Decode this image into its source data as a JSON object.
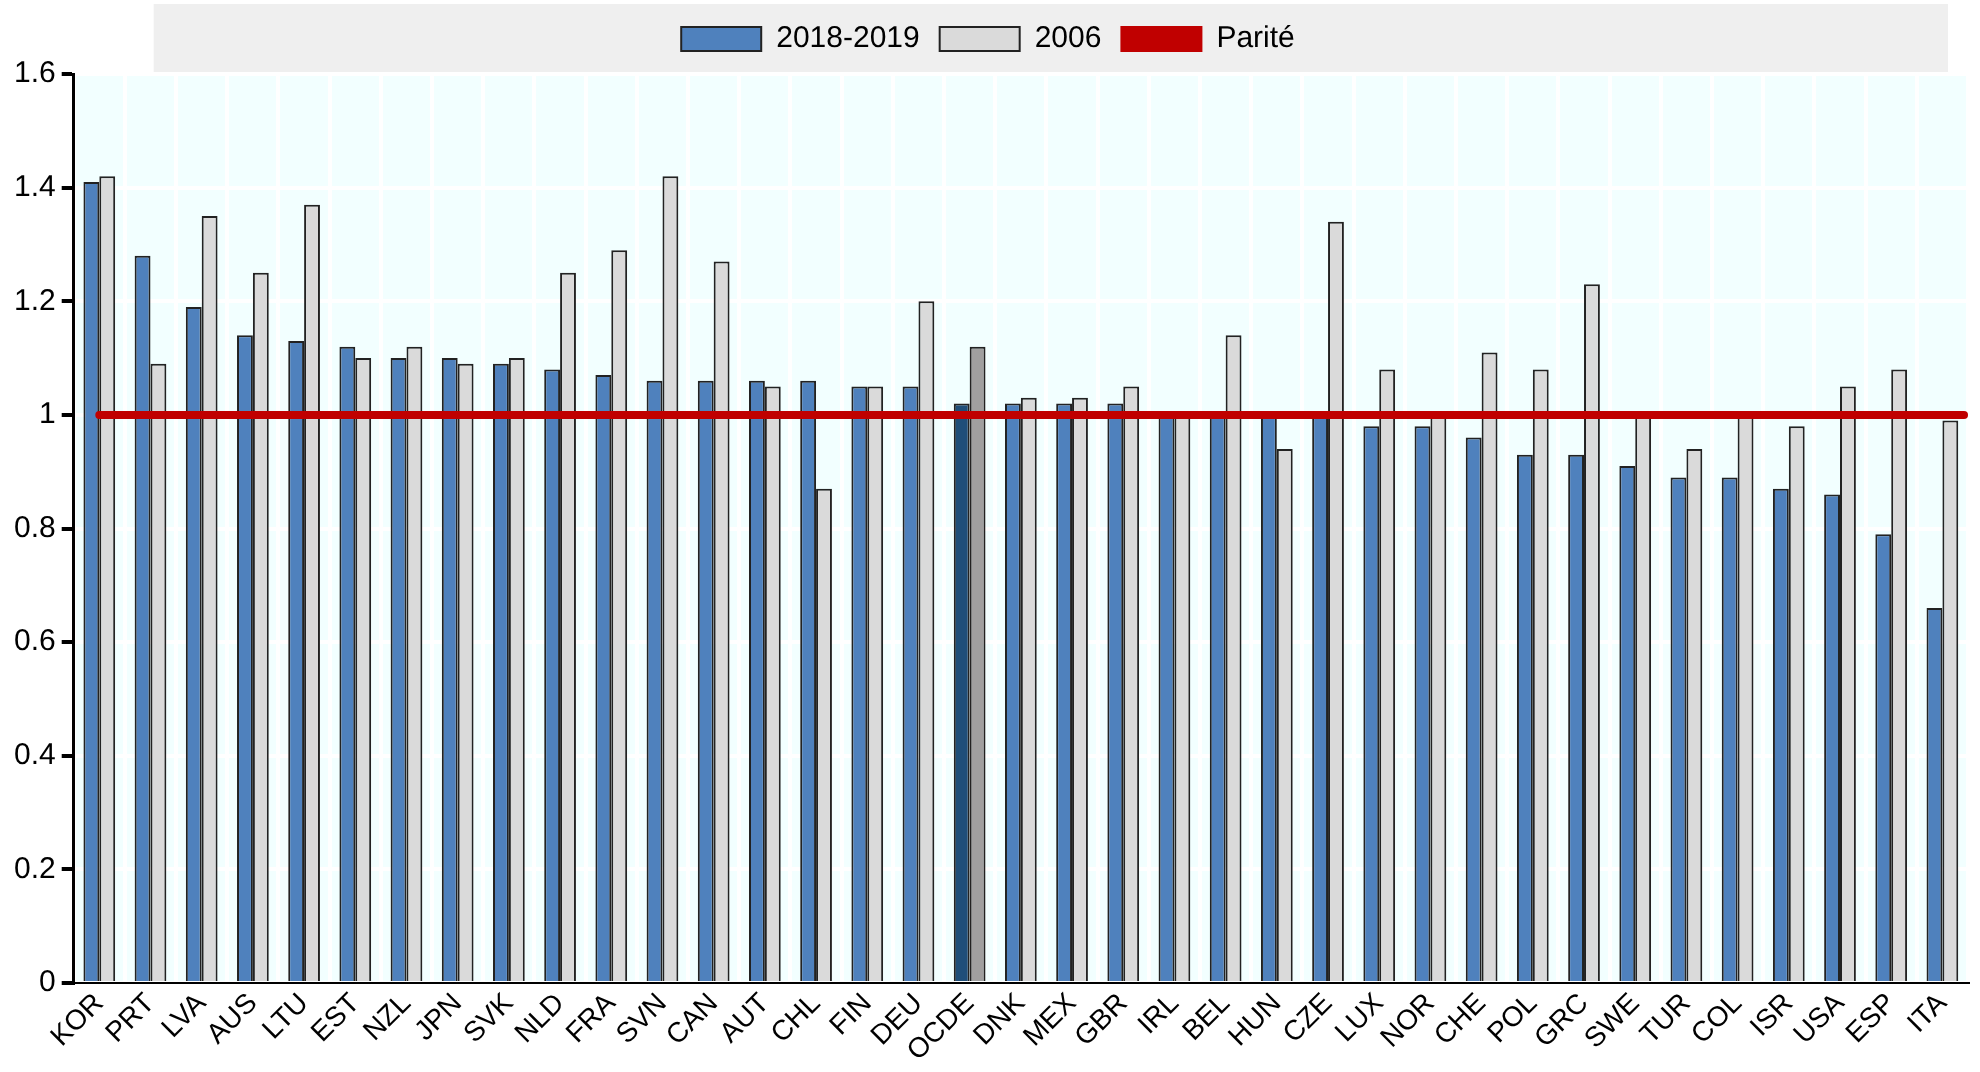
{
  "chart_data": {
    "type": "bar",
    "categories": [
      "KOR",
      "PRT",
      "LVA",
      "AUS",
      "LTU",
      "EST",
      "NZL",
      "JPN",
      "SVK",
      "NLD",
      "FRA",
      "SVN",
      "CAN",
      "AUT",
      "CHL",
      "FIN",
      "DEU",
      "OCDE",
      "DNK",
      "MEX",
      "GBR",
      "IRL",
      "BEL",
      "HUN",
      "CZE",
      "LUX",
      "NOR",
      "CHE",
      "POL",
      "GRC",
      "SWE",
      "TUR",
      "COL",
      "ISR",
      "USA",
      "ESP",
      "ITA"
    ],
    "series": [
      {
        "name": "2018-2019",
        "color": "#4f81bd",
        "colors": [
          "#4f81bd",
          "#4f81bd",
          "#4f81bd",
          "#4f81bd",
          "#4f81bd",
          "#4f81bd",
          "#4f81bd",
          "#4f81bd",
          "#4f81bd",
          "#4f81bd",
          "#4f81bd",
          "#4f81bd",
          "#4f81bd",
          "#4f81bd",
          "#4f81bd",
          "#4f81bd",
          "#4f81bd",
          "#1f4e79",
          "#4f81bd",
          "#4f81bd",
          "#4f81bd",
          "#4f81bd",
          "#4f81bd",
          "#4f81bd",
          "#4f81bd",
          "#4f81bd",
          "#4f81bd",
          "#4f81bd",
          "#4f81bd",
          "#4f81bd",
          "#4f81bd",
          "#4f81bd",
          "#4f81bd",
          "#4f81bd",
          "#4f81bd",
          "#4f81bd",
          "#4f81bd"
        ],
        "values": [
          1.41,
          1.28,
          1.19,
          1.14,
          1.13,
          1.12,
          1.1,
          1.1,
          1.09,
          1.08,
          1.07,
          1.06,
          1.06,
          1.06,
          1.06,
          1.05,
          1.05,
          1.02,
          1.02,
          1.02,
          1.02,
          1.0,
          1.0,
          1.0,
          1.0,
          0.98,
          0.98,
          0.96,
          0.93,
          0.93,
          0.91,
          0.89,
          0.89,
          0.87,
          0.86,
          0.79,
          0.66
        ]
      },
      {
        "name": "2006",
        "color": "#dadada",
        "colors": [
          "#dadada",
          "#dadada",
          "#dadada",
          "#dadada",
          "#dadada",
          "#dadada",
          "#dadada",
          "#dadada",
          "#dadada",
          "#dadada",
          "#dadada",
          "#dadada",
          "#dadada",
          "#dadada",
          "#dadada",
          "#dadada",
          "#dadada",
          "#a0a0a0",
          "#dadada",
          "#dadada",
          "#dadada",
          "#dadada",
          "#dadada",
          "#dadada",
          "#dadada",
          "#dadada",
          "#dadada",
          "#dadada",
          "#dadada",
          "#dadada",
          "#dadada",
          "#dadada",
          "#dadada",
          "#dadada",
          "#dadada",
          "#dadada",
          "#dadada"
        ],
        "values": [
          1.42,
          1.09,
          1.35,
          1.25,
          1.37,
          1.1,
          1.12,
          1.09,
          1.1,
          1.25,
          1.29,
          1.42,
          1.27,
          1.05,
          0.87,
          1.05,
          1.2,
          1.12,
          1.03,
          1.03,
          1.05,
          1.0,
          1.14,
          0.94,
          1.34,
          1.08,
          1.0,
          1.11,
          1.08,
          1.23,
          1.0,
          0.94,
          1.0,
          0.98,
          1.05,
          1.08,
          0.99
        ]
      }
    ],
    "ref_lines": [
      {
        "axis": "y",
        "value": 1,
        "label": "Parité",
        "color": "#c00000"
      }
    ],
    "ylim": [
      0,
      1.6
    ],
    "yticks": [
      0,
      0.2,
      0.4,
      0.6,
      0.8,
      1,
      1.2,
      1.4,
      1.6
    ],
    "grid": true,
    "legend": "top"
  }
}
